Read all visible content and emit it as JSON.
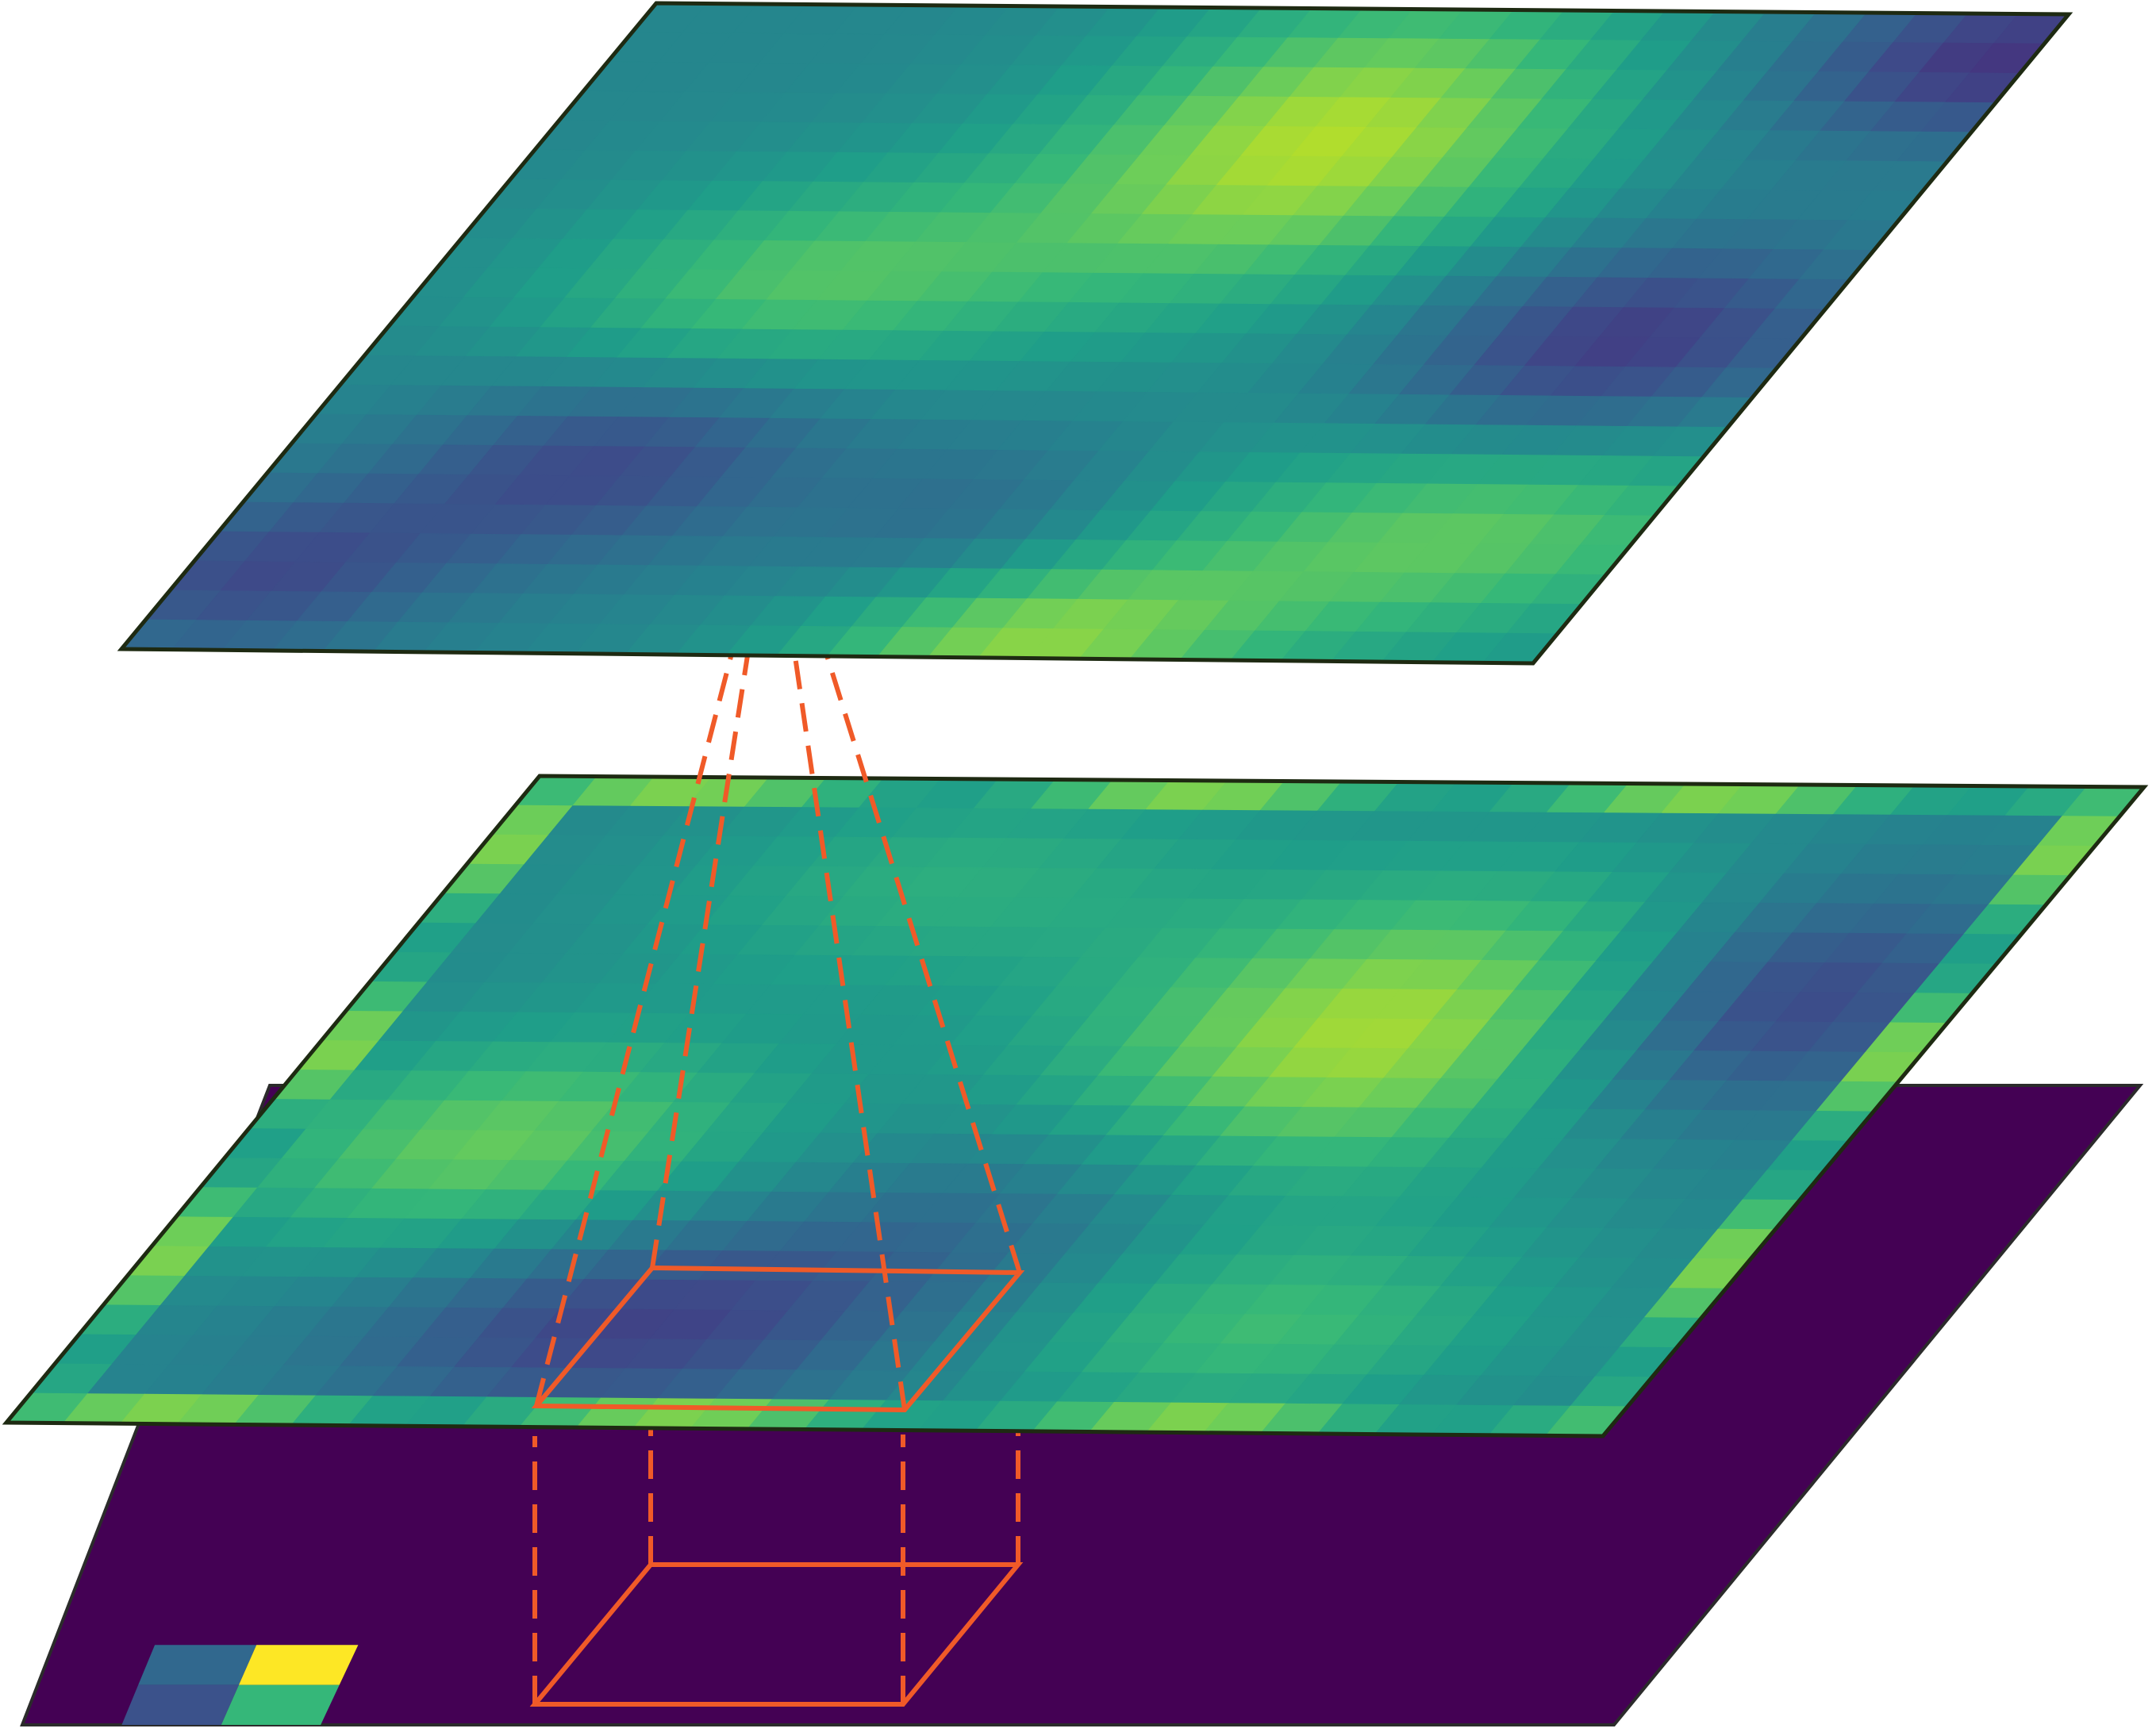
{
  "diagram": {
    "layers": [
      {
        "id": "input",
        "grid": [
          16,
          16
        ],
        "base_color": "#440154",
        "nonzero_cells": [
          {
            "r": 14,
            "c": 1,
            "color": "#31688e"
          },
          {
            "r": 14,
            "c": 2,
            "color": "#fde725"
          },
          {
            "r": 15,
            "c": 1,
            "color": "#3b528b"
          },
          {
            "r": 15,
            "c": 2,
            "color": "#35b779"
          }
        ]
      },
      {
        "id": "middle",
        "grid": [
          22,
          28
        ],
        "colormap": "viridis",
        "border_color": "#7ad151",
        "blobs": [
          {
            "r": 8,
            "c": 18,
            "sigma_r": 3.6,
            "sigma_c": 3.8,
            "amp": 0.42
          },
          {
            "r": 12,
            "c": 4,
            "sigma_r": 2.6,
            "sigma_c": 3.2,
            "amp": 0.3
          },
          {
            "r": 7,
            "c": 24,
            "sigma_r": 2.8,
            "sigma_c": 2.6,
            "amp": -0.32
          },
          {
            "r": 18,
            "c": 9,
            "sigma_r": 2.4,
            "sigma_c": 3.4,
            "amp": -0.26
          },
          {
            "r": 18,
            "c": 20,
            "sigma_r": 2.3,
            "sigma_c": 3.2,
            "amp": 0.22
          },
          {
            "r": 3,
            "c": 8,
            "sigma_r": 2.6,
            "sigma_c": 3.6,
            "amp": 0.16
          },
          {
            "r": 14,
            "c": 14,
            "sigma_r": 2.6,
            "sigma_c": 2.6,
            "amp": -0.12
          }
        ]
      },
      {
        "id": "top",
        "grid": [
          22,
          28
        ],
        "colormap": "viridis",
        "blobs": [
          {
            "r": 4,
            "c": 15,
            "sigma_r": 3.6,
            "sigma_c": 3.6,
            "amp": 0.42
          },
          {
            "r": 9,
            "c": 7,
            "sigma_r": 2.6,
            "sigma_c": 3.6,
            "amp": 0.26
          },
          {
            "r": 17,
            "c": 24,
            "sigma_r": 2.8,
            "sigma_c": 4.2,
            "amp": 0.3
          },
          {
            "r": 21,
            "c": 17,
            "sigma_r": 2.0,
            "sigma_c": 3.2,
            "amp": 0.34
          },
          {
            "r": 11,
            "c": 24,
            "sigma_r": 2.6,
            "sigma_c": 3.0,
            "amp": -0.3
          },
          {
            "r": 15,
            "c": 6,
            "sigma_r": 2.4,
            "sigma_c": 3.0,
            "amp": -0.24
          },
          {
            "r": 1,
            "c": 27,
            "sigma_r": 2.0,
            "sigma_c": 3.0,
            "amp": -0.3
          },
          {
            "r": 19,
            "c": 1,
            "sigma_r": 2.0,
            "sigma_c": 2.5,
            "amp": -0.22
          },
          {
            "r": 17,
            "c": 14,
            "sigma_r": 2.2,
            "sigma_c": 2.2,
            "amp": -0.12
          }
        ]
      }
    ],
    "connector": {
      "color": "#f05a28",
      "line_style": "dashed"
    }
  }
}
